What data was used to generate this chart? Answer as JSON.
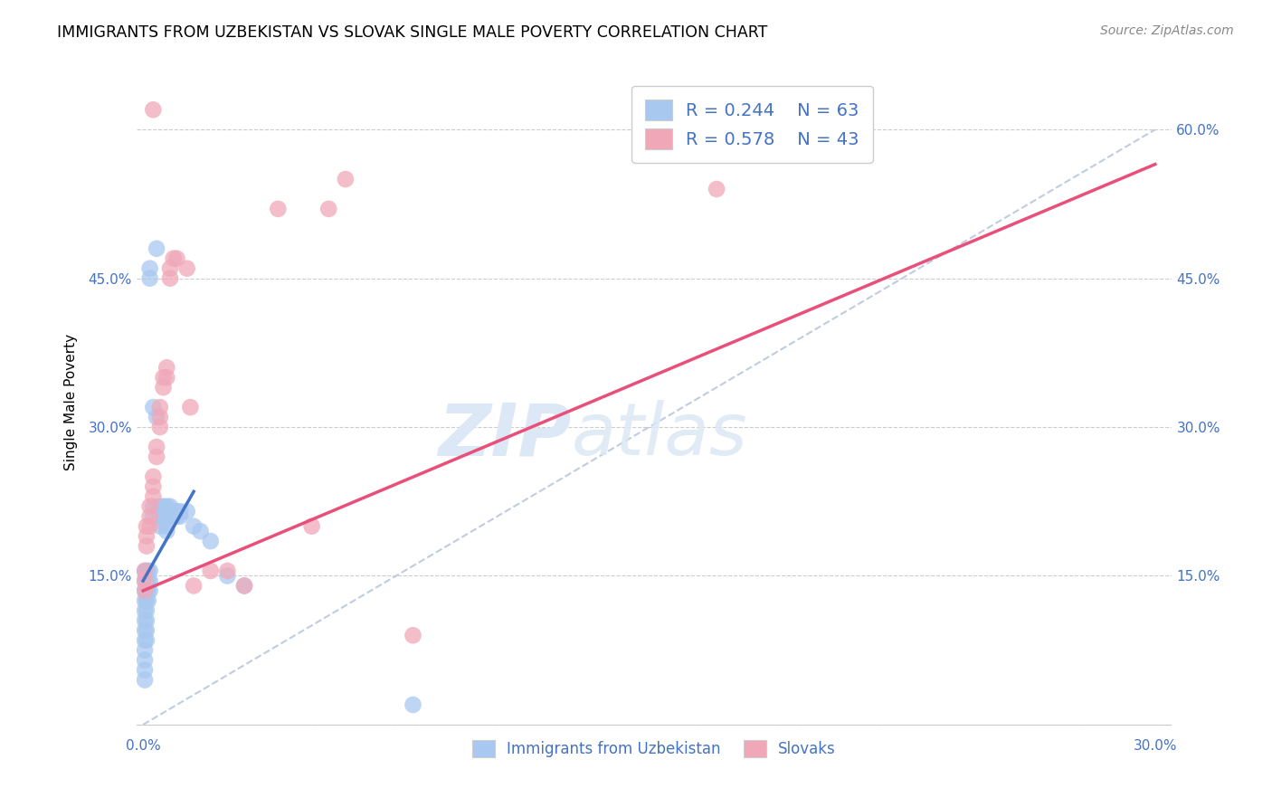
{
  "title": "IMMIGRANTS FROM UZBEKISTAN VS SLOVAK SINGLE MALE POVERTY CORRELATION CHART",
  "source": "Source: ZipAtlas.com",
  "ylabel_label": "Single Male Poverty",
  "x_min": -0.002,
  "x_max": 0.305,
  "y_min": -0.01,
  "y_max": 0.66,
  "x_ticks": [
    0.0,
    0.05,
    0.1,
    0.15,
    0.2,
    0.25,
    0.3
  ],
  "x_tick_labels": [
    "0.0%",
    "",
    "",
    "",
    "",
    "",
    "30.0%"
  ],
  "y_ticks_left": [
    0.0,
    0.15,
    0.3,
    0.45,
    0.6
  ],
  "y_tick_labels_left": [
    "",
    "15.0%",
    "30.0%",
    "45.0%",
    ""
  ],
  "y_ticks_right": [
    0.0,
    0.15,
    0.3,
    0.45,
    0.6
  ],
  "y_tick_labels_right": [
    "",
    "15.0%",
    "30.0%",
    "45.0%",
    "60.0%"
  ],
  "background_color": "#ffffff",
  "grid_color": "#cccccc",
  "blue_color": "#a8c8f0",
  "pink_color": "#f0a8b8",
  "blue_line_color": "#4472c4",
  "pink_line_color": "#e8507a",
  "diag_line_color": "#c0cce0",
  "legend_text_color": "#4472c4",
  "watermark_color": "#dce8f5",
  "blue_points": [
    [
      0.0005,
      0.155
    ],
    [
      0.0005,
      0.145
    ],
    [
      0.0005,
      0.135
    ],
    [
      0.0005,
      0.125
    ],
    [
      0.0005,
      0.115
    ],
    [
      0.0005,
      0.105
    ],
    [
      0.0005,
      0.095
    ],
    [
      0.0005,
      0.085
    ],
    [
      0.0005,
      0.075
    ],
    [
      0.0005,
      0.065
    ],
    [
      0.0005,
      0.055
    ],
    [
      0.0005,
      0.045
    ],
    [
      0.001,
      0.155
    ],
    [
      0.001,
      0.145
    ],
    [
      0.001,
      0.135
    ],
    [
      0.001,
      0.125
    ],
    [
      0.001,
      0.115
    ],
    [
      0.001,
      0.105
    ],
    [
      0.001,
      0.095
    ],
    [
      0.001,
      0.085
    ],
    [
      0.0015,
      0.155
    ],
    [
      0.0015,
      0.145
    ],
    [
      0.0015,
      0.135
    ],
    [
      0.0015,
      0.125
    ],
    [
      0.002,
      0.155
    ],
    [
      0.002,
      0.145
    ],
    [
      0.002,
      0.135
    ],
    [
      0.003,
      0.22
    ],
    [
      0.003,
      0.21
    ],
    [
      0.004,
      0.31
    ],
    [
      0.004,
      0.48
    ],
    [
      0.005,
      0.22
    ],
    [
      0.005,
      0.21
    ],
    [
      0.005,
      0.2
    ],
    [
      0.006,
      0.22
    ],
    [
      0.006,
      0.21
    ],
    [
      0.007,
      0.2
    ],
    [
      0.007,
      0.195
    ],
    [
      0.007,
      0.22
    ],
    [
      0.007,
      0.215
    ],
    [
      0.008,
      0.22
    ],
    [
      0.008,
      0.215
    ],
    [
      0.008,
      0.21
    ],
    [
      0.009,
      0.215
    ],
    [
      0.009,
      0.21
    ],
    [
      0.01,
      0.215
    ],
    [
      0.01,
      0.21
    ],
    [
      0.011,
      0.215
    ],
    [
      0.011,
      0.21
    ],
    [
      0.013,
      0.215
    ],
    [
      0.015,
      0.2
    ],
    [
      0.017,
      0.195
    ],
    [
      0.02,
      0.185
    ],
    [
      0.025,
      0.15
    ],
    [
      0.03,
      0.14
    ],
    [
      0.002,
      0.46
    ],
    [
      0.002,
      0.45
    ],
    [
      0.003,
      0.32
    ],
    [
      0.08,
      0.02
    ]
  ],
  "pink_points": [
    [
      0.0005,
      0.155
    ],
    [
      0.0005,
      0.145
    ],
    [
      0.0005,
      0.135
    ],
    [
      0.001,
      0.2
    ],
    [
      0.001,
      0.19
    ],
    [
      0.001,
      0.18
    ],
    [
      0.002,
      0.22
    ],
    [
      0.002,
      0.21
    ],
    [
      0.002,
      0.2
    ],
    [
      0.003,
      0.25
    ],
    [
      0.003,
      0.24
    ],
    [
      0.003,
      0.23
    ],
    [
      0.004,
      0.28
    ],
    [
      0.004,
      0.27
    ],
    [
      0.005,
      0.32
    ],
    [
      0.005,
      0.31
    ],
    [
      0.005,
      0.3
    ],
    [
      0.006,
      0.35
    ],
    [
      0.006,
      0.34
    ],
    [
      0.007,
      0.36
    ],
    [
      0.007,
      0.35
    ],
    [
      0.008,
      0.46
    ],
    [
      0.008,
      0.45
    ],
    [
      0.009,
      0.47
    ],
    [
      0.01,
      0.47
    ],
    [
      0.013,
      0.46
    ],
    [
      0.014,
      0.32
    ],
    [
      0.015,
      0.14
    ],
    [
      0.02,
      0.155
    ],
    [
      0.025,
      0.155
    ],
    [
      0.03,
      0.14
    ],
    [
      0.04,
      0.52
    ],
    [
      0.05,
      0.2
    ],
    [
      0.055,
      0.52
    ],
    [
      0.06,
      0.55
    ],
    [
      0.08,
      0.09
    ],
    [
      0.17,
      0.54
    ],
    [
      0.003,
      0.62
    ]
  ],
  "blue_line_x": [
    0.0,
    0.015
  ],
  "blue_line_y": [
    0.145,
    0.235
  ],
  "pink_line_x": [
    0.0,
    0.3
  ],
  "pink_line_y": [
    0.135,
    0.565
  ],
  "diag_line_x": [
    0.0,
    0.3
  ],
  "diag_line_y": [
    0.0,
    0.6
  ]
}
